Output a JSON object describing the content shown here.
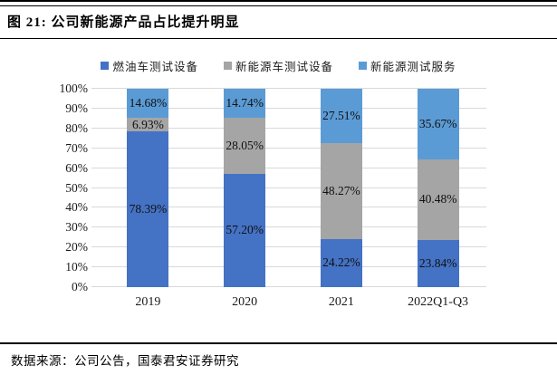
{
  "figure": {
    "title": "图 21: 公司新能源产品占比提升明显",
    "source": "数据来源：公司公告，国泰君安证券研究"
  },
  "chart_data": {
    "type": "bar",
    "subtype": "stacked-100-percent",
    "title": "公司新能源产品占比提升明显",
    "categories": [
      "2019",
      "2020",
      "2021",
      "2022Q1-Q3"
    ],
    "series": [
      {
        "name": "燃油车测试设备",
        "color": "#4472C4",
        "values": [
          78.39,
          57.2,
          24.22,
          23.84
        ]
      },
      {
        "name": "新能源车测试设备",
        "color": "#A5A5A5",
        "values": [
          6.93,
          28.05,
          48.27,
          40.48
        ]
      },
      {
        "name": "新能源测试服务",
        "color": "#5B9BD5",
        "values": [
          14.68,
          14.74,
          27.51,
          35.67
        ]
      }
    ],
    "y_ticks": [
      "100%",
      "90%",
      "80%",
      "70%",
      "60%",
      "50%",
      "40%",
      "30%",
      "20%",
      "10%",
      "0%"
    ],
    "ylim": [
      0,
      100
    ],
    "grid": true,
    "gridline_color": "#D9D9D9",
    "legend_position": "top",
    "data_label_format": "0.00%"
  }
}
